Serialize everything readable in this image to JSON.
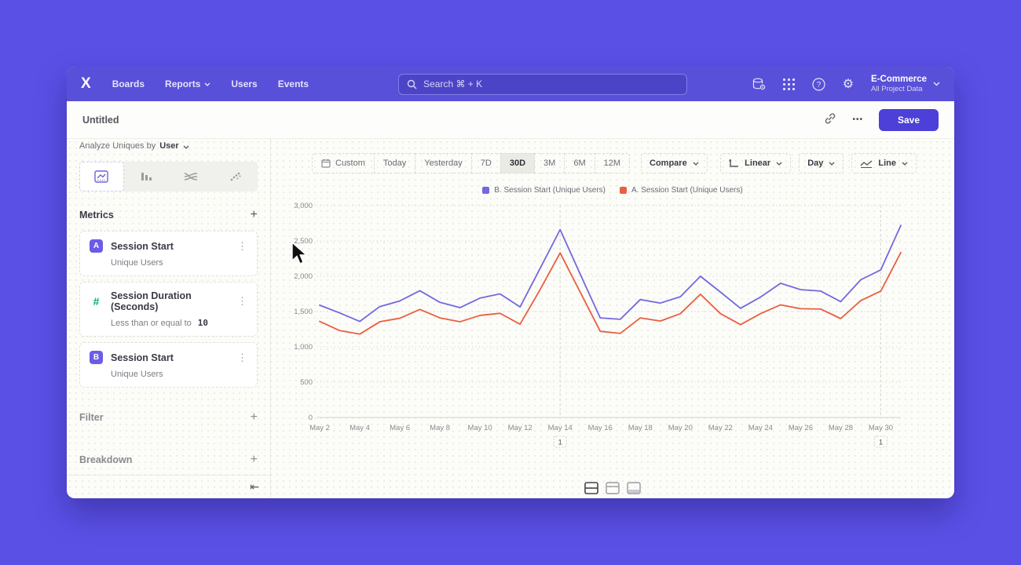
{
  "nav": {
    "logo_text": "X",
    "items": [
      {
        "label": "Boards",
        "has_chevron": false
      },
      {
        "label": "Reports",
        "has_chevron": true
      },
      {
        "label": "Users",
        "has_chevron": false
      },
      {
        "label": "Events",
        "has_chevron": false
      }
    ],
    "search": {
      "placeholder": "Search  ⌘ + K"
    },
    "project": {
      "name": "E-Commerce",
      "scope": "All Project Data"
    }
  },
  "header": {
    "title": "Untitled",
    "ellipsis_glyph": "•••",
    "save_label": "Save"
  },
  "sidebar": {
    "analyze_label": "Analyze Uniques by",
    "analyze_value": "User",
    "metrics_title": "Metrics",
    "plus_glyph": "+",
    "kebab_glyph": "⋮",
    "metrics": [
      {
        "badge": "A",
        "name": "Session Start",
        "subtitle": "Unique Users"
      },
      {
        "badge": "#",
        "name": "Session Duration (Seconds)",
        "subtitle": "Less than or equal to",
        "subtitle_value": "10"
      },
      {
        "badge": "B",
        "name": "Session Start",
        "subtitle": "Unique Users"
      }
    ],
    "filter_label": "Filter",
    "breakdown_label": "Breakdown",
    "collapse_glyph": "⇤"
  },
  "toolbar": {
    "ranges": [
      "Custom",
      "Today",
      "Yesterday",
      "7D",
      "30D",
      "3M",
      "6M",
      "12M"
    ],
    "selected_range": "30D",
    "compare_label": "Compare",
    "scale_label": "Linear",
    "interval_label": "Day",
    "chart_type_label": "Line"
  },
  "chart_data": {
    "type": "line",
    "x": [
      "May 2",
      "May 3",
      "May 4",
      "May 5",
      "May 6",
      "May 7",
      "May 8",
      "May 9",
      "May 10",
      "May 11",
      "May 12",
      "May 13",
      "May 14",
      "May 15",
      "May 16",
      "May 17",
      "May 18",
      "May 19",
      "May 20",
      "May 21",
      "May 22",
      "May 23",
      "May 24",
      "May 25",
      "May 26",
      "May 27",
      "May 28",
      "May 29",
      "May 30",
      "May 31"
    ],
    "x_tick_every": 2,
    "series": [
      {
        "name": "B. Session Start (Unique Users)",
        "color": "#7169de",
        "values": [
          1590,
          1480,
          1360,
          1570,
          1650,
          1795,
          1630,
          1555,
          1690,
          1750,
          1565,
          2110,
          2660,
          2030,
          1410,
          1390,
          1670,
          1620,
          1710,
          2000,
          1775,
          1545,
          1705,
          1900,
          1810,
          1790,
          1640,
          1950,
          2090,
          2720
        ]
      },
      {
        "name": "A. Session Start (Unique Users)",
        "color": "#e95f3f",
        "values": [
          1360,
          1230,
          1180,
          1355,
          1405,
          1530,
          1410,
          1355,
          1445,
          1475,
          1320,
          1810,
          2330,
          1775,
          1220,
          1190,
          1410,
          1365,
          1470,
          1745,
          1470,
          1315,
          1470,
          1595,
          1540,
          1535,
          1400,
          1655,
          1790,
          2335
        ]
      }
    ],
    "ylim": [
      0,
      3000
    ],
    "yticks": [
      0,
      500,
      1000,
      1500,
      2000,
      2500,
      3000
    ],
    "annotations": [
      {
        "x": "May 14",
        "label": "1"
      },
      {
        "x": "May 30",
        "label": "1"
      }
    ],
    "legend_position": "top-center",
    "grid": "horizontal-dotted"
  },
  "colors": {
    "page_background": "#5a50e6",
    "nav_background": "#5850d8",
    "accent": "#4c40d9",
    "series_b": "#7169de",
    "series_a": "#e95f3f",
    "badge_purple": "#6a5ce6",
    "hash_green": "#0fa37f"
  }
}
